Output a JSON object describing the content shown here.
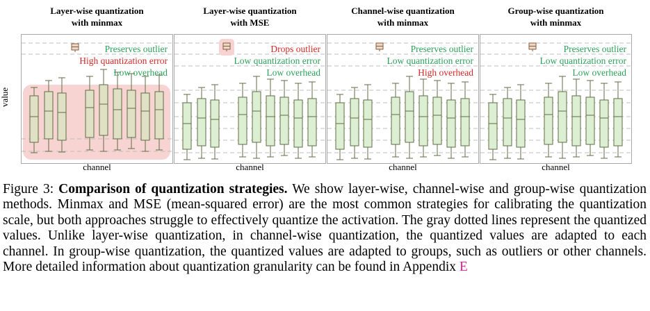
{
  "axes": {
    "ylabel": "value",
    "xlabel": "channel"
  },
  "panels": [
    {
      "title_line1": "Layer-wise quantization",
      "title_line2": "with minmax",
      "legend": [
        {
          "text": "Preserves outlier",
          "status": "good"
        },
        {
          "text": "High quantization error",
          "status": "bad"
        },
        {
          "text": "Low overhead",
          "status": "good"
        }
      ],
      "highlight": "full",
      "box_color": "#dfe0c4",
      "box_stroke": "#5f6b45",
      "grid_lines": 4
    },
    {
      "title_line1": "Layer-wise quantization",
      "title_line2": "with MSE",
      "legend": [
        {
          "text": "Drops outlier",
          "status": "bad"
        },
        {
          "text": "Low quantization error",
          "status": "good"
        },
        {
          "text": "Low overhead",
          "status": "good"
        }
      ],
      "highlight": "outlier",
      "box_color": "#dcefd3",
      "box_stroke": "#5f6b45",
      "grid_lines": 9
    },
    {
      "title_line1": "Channel-wise quantization",
      "title_line2": "with minmax",
      "legend": [
        {
          "text": "Preserves outlier",
          "status": "good"
        },
        {
          "text": "Low quantization error",
          "status": "good"
        },
        {
          "text": "High overhead",
          "status": "bad"
        }
      ],
      "highlight": "none",
      "box_color": "#dcefd3",
      "box_stroke": "#5f6b45",
      "grid_lines": 9
    },
    {
      "title_line1": "Group-wise quantization",
      "title_line2": "with minmax",
      "legend": [
        {
          "text": "Preserves outlier",
          "status": "good"
        },
        {
          "text": "Low quantization error",
          "status": "good"
        },
        {
          "text": "Low overhead",
          "status": "good"
        }
      ],
      "highlight": "none",
      "box_color": "#dcefd3",
      "box_stroke": "#5f6b45",
      "grid_lines": 9
    }
  ],
  "icons": {
    "outlier": "outlier-box-icon"
  },
  "colors": {
    "good": "#2ca05a",
    "bad": "#d62728",
    "highlight": "#f7d4d2",
    "link": "#e0209a"
  },
  "caption": {
    "label": "Figure 3: ",
    "bold": "Comparison of quantization strategies.",
    "body": " We show layer-wise, channel-wise and group-wise quantization methods. Minmax and MSE (mean-squared error) are the most common strategies for calibrating the quantization scale, but both approaches struggle to effectively quantize the activation. The gray dotted lines represent the quantized values. Unlike layer-wise quantization, in channel-wise quantization, the quantized values are adapted to each channel. In group-wise quantization, the quantized values are adapted to groups, such as outliers or other channels. More detailed information about quantization granularity can be found in Appendix ",
    "link": "E"
  }
}
